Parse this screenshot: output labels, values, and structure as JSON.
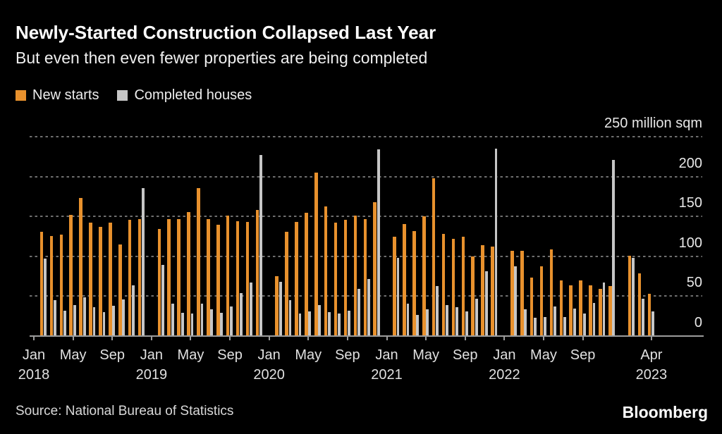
{
  "header": {
    "title": "Newly-Started Construction Collapsed Last Year",
    "subtitle": "But even then even fewer properties are being completed"
  },
  "footer": {
    "source": "Source: National Bureau of Statistics",
    "brand": "Bloomberg"
  },
  "chart_data": {
    "type": "bar",
    "title": "Newly-Started Construction Collapsed Last Year",
    "subtitle": "But even then even fewer properties are being completed",
    "unit": "million sqm",
    "ylim": [
      0,
      250
    ],
    "yticks": [
      0,
      50,
      100,
      150,
      200,
      250
    ],
    "ytick_top_label": "250 million sqm",
    "grid": "horizontal-dotted",
    "legend_position": "top-left",
    "background": "#000000",
    "x_months_span": [
      "2018-01",
      "2023-04"
    ],
    "series": [
      {
        "name": "New starts",
        "key": "new_starts",
        "color": "#E8912D"
      },
      {
        "name": "Completed houses",
        "key": "completed",
        "color": "#C6C6C6"
      }
    ],
    "xticks": [
      {
        "m": "2018-01",
        "label": "Jan",
        "year": "2018"
      },
      {
        "m": "2018-05",
        "label": "May"
      },
      {
        "m": "2018-09",
        "label": "Sep"
      },
      {
        "m": "2019-01",
        "label": "Jan",
        "year": "2019"
      },
      {
        "m": "2019-05",
        "label": "May"
      },
      {
        "m": "2019-09",
        "label": "Sep"
      },
      {
        "m": "2020-01",
        "label": "Jan",
        "year": "2020"
      },
      {
        "m": "2020-05",
        "label": "May"
      },
      {
        "m": "2020-09",
        "label": "Sep"
      },
      {
        "m": "2021-01",
        "label": "Jan",
        "year": "2021"
      },
      {
        "m": "2021-05",
        "label": "May"
      },
      {
        "m": "2021-09",
        "label": "Sep"
      },
      {
        "m": "2022-01",
        "label": "Jan",
        "year": "2022"
      },
      {
        "m": "2022-05",
        "label": "May"
      },
      {
        "m": "2022-09",
        "label": "Sep"
      },
      {
        "m": "2023-04",
        "label": "Apr",
        "year": "2023"
      }
    ],
    "months": [
      {
        "m": "2018-02",
        "new_starts": 130,
        "completed": 96
      },
      {
        "m": "2018-03",
        "new_starts": 125,
        "completed": 44
      },
      {
        "m": "2018-04",
        "new_starts": 126,
        "completed": 31
      },
      {
        "m": "2018-05",
        "new_starts": 151,
        "completed": 38
      },
      {
        "m": "2018-06",
        "new_starts": 172,
        "completed": 48
      },
      {
        "m": "2018-07",
        "new_starts": 141,
        "completed": 35
      },
      {
        "m": "2018-08",
        "new_starts": 136,
        "completed": 29
      },
      {
        "m": "2018-09",
        "new_starts": 141,
        "completed": 37
      },
      {
        "m": "2018-10",
        "new_starts": 114,
        "completed": 45
      },
      {
        "m": "2018-11",
        "new_starts": 145,
        "completed": 63
      },
      {
        "m": "2018-12",
        "new_starts": 146,
        "completed": 185
      },
      {
        "m": "2019-02",
        "new_starts": 133,
        "completed": 88
      },
      {
        "m": "2019-03",
        "new_starts": 146,
        "completed": 40
      },
      {
        "m": "2019-04",
        "new_starts": 146,
        "completed": 28
      },
      {
        "m": "2019-05",
        "new_starts": 155,
        "completed": 27
      },
      {
        "m": "2019-06",
        "new_starts": 185,
        "completed": 40
      },
      {
        "m": "2019-07",
        "new_starts": 146,
        "completed": 33
      },
      {
        "m": "2019-08",
        "new_starts": 139,
        "completed": 28
      },
      {
        "m": "2019-09",
        "new_starts": 150,
        "completed": 36
      },
      {
        "m": "2019-10",
        "new_starts": 143,
        "completed": 53
      },
      {
        "m": "2019-11",
        "new_starts": 142,
        "completed": 66
      },
      {
        "m": "2019-12",
        "new_starts": 157,
        "completed": 226
      },
      {
        "m": "2020-02",
        "new_starts": 74,
        "completed": 67
      },
      {
        "m": "2020-03",
        "new_starts": 130,
        "completed": 44
      },
      {
        "m": "2020-04",
        "new_starts": 142,
        "completed": 27
      },
      {
        "m": "2020-05",
        "new_starts": 154,
        "completed": 30
      },
      {
        "m": "2020-06",
        "new_starts": 204,
        "completed": 38
      },
      {
        "m": "2020-07",
        "new_starts": 162,
        "completed": 29
      },
      {
        "m": "2020-08",
        "new_starts": 141,
        "completed": 27
      },
      {
        "m": "2020-09",
        "new_starts": 145,
        "completed": 31
      },
      {
        "m": "2020-10",
        "new_starts": 150,
        "completed": 58
      },
      {
        "m": "2020-11",
        "new_starts": 146,
        "completed": 71
      },
      {
        "m": "2020-12",
        "new_starts": 167,
        "completed": 233
      },
      {
        "m": "2021-02",
        "new_starts": 124,
        "completed": 97
      },
      {
        "m": "2021-03",
        "new_starts": 140,
        "completed": 40
      },
      {
        "m": "2021-04",
        "new_starts": 131,
        "completed": 26
      },
      {
        "m": "2021-05",
        "new_starts": 149,
        "completed": 33
      },
      {
        "m": "2021-06",
        "new_starts": 197,
        "completed": 62
      },
      {
        "m": "2021-07",
        "new_starts": 127,
        "completed": 38
      },
      {
        "m": "2021-08",
        "new_starts": 121,
        "completed": 35
      },
      {
        "m": "2021-09",
        "new_starts": 124,
        "completed": 30
      },
      {
        "m": "2021-10",
        "new_starts": 99,
        "completed": 46
      },
      {
        "m": "2021-11",
        "new_starts": 113,
        "completed": 80
      },
      {
        "m": "2021-12",
        "new_starts": 111,
        "completed": 234
      },
      {
        "m": "2022-02",
        "new_starts": 106,
        "completed": 87
      },
      {
        "m": "2022-03",
        "new_starts": 106,
        "completed": 33
      },
      {
        "m": "2022-04",
        "new_starts": 72,
        "completed": 22
      },
      {
        "m": "2022-05",
        "new_starts": 87,
        "completed": 23
      },
      {
        "m": "2022-06",
        "new_starts": 108,
        "completed": 36
      },
      {
        "m": "2022-07",
        "new_starts": 69,
        "completed": 23
      },
      {
        "m": "2022-08",
        "new_starts": 63,
        "completed": 34
      },
      {
        "m": "2022-09",
        "new_starts": 69,
        "completed": 27
      },
      {
        "m": "2022-10",
        "new_starts": 63,
        "completed": 41
      },
      {
        "m": "2022-11",
        "new_starts": 58,
        "completed": 66
      },
      {
        "m": "2022-12",
        "new_starts": 62,
        "completed": 220
      },
      {
        "m": "2023-02",
        "new_starts": 100,
        "completed": 97
      },
      {
        "m": "2023-03",
        "new_starts": 78,
        "completed": 46
      },
      {
        "m": "2023-04",
        "new_starts": 52,
        "completed": 30
      }
    ]
  }
}
